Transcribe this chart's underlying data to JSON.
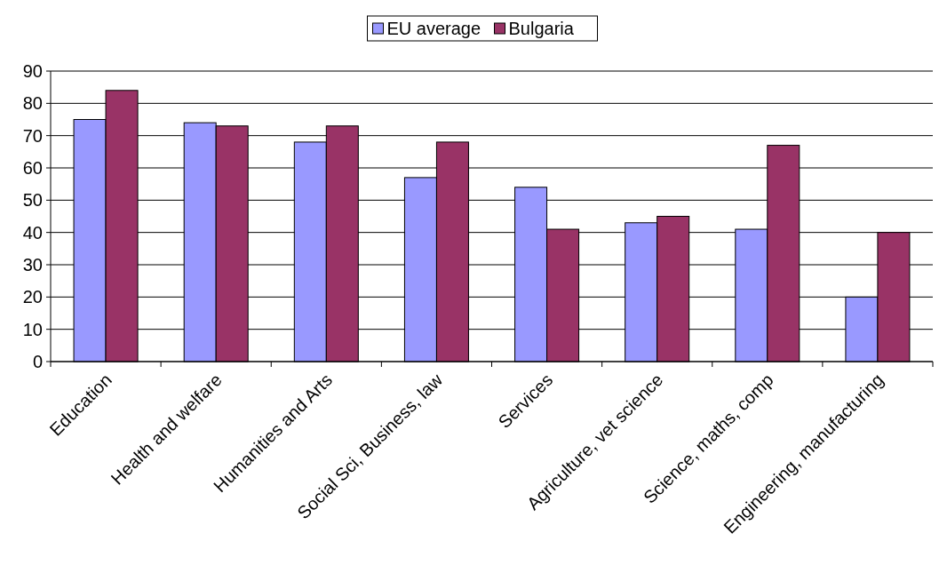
{
  "chart_data": {
    "type": "bar",
    "categories": [
      "Education",
      "Health and welfare",
      "Humanities and Arts",
      "Social Sci, Business, law",
      "Services",
      "Agriculture, vet science",
      "Science, maths, comp",
      "Engineering, manufacturing"
    ],
    "series": [
      {
        "name": "EU average",
        "color": "#9999ff",
        "values": [
          75,
          74,
          68,
          57,
          54,
          43,
          41,
          20
        ]
      },
      {
        "name": "Bulgaria",
        "color": "#993366",
        "values": [
          84,
          73,
          73,
          68,
          41,
          45,
          67,
          40
        ]
      }
    ],
    "ylim": [
      0,
      90
    ],
    "yticks": [
      0,
      10,
      20,
      30,
      40,
      50,
      60,
      70,
      80,
      90
    ],
    "grid": "y",
    "legend": "top"
  }
}
